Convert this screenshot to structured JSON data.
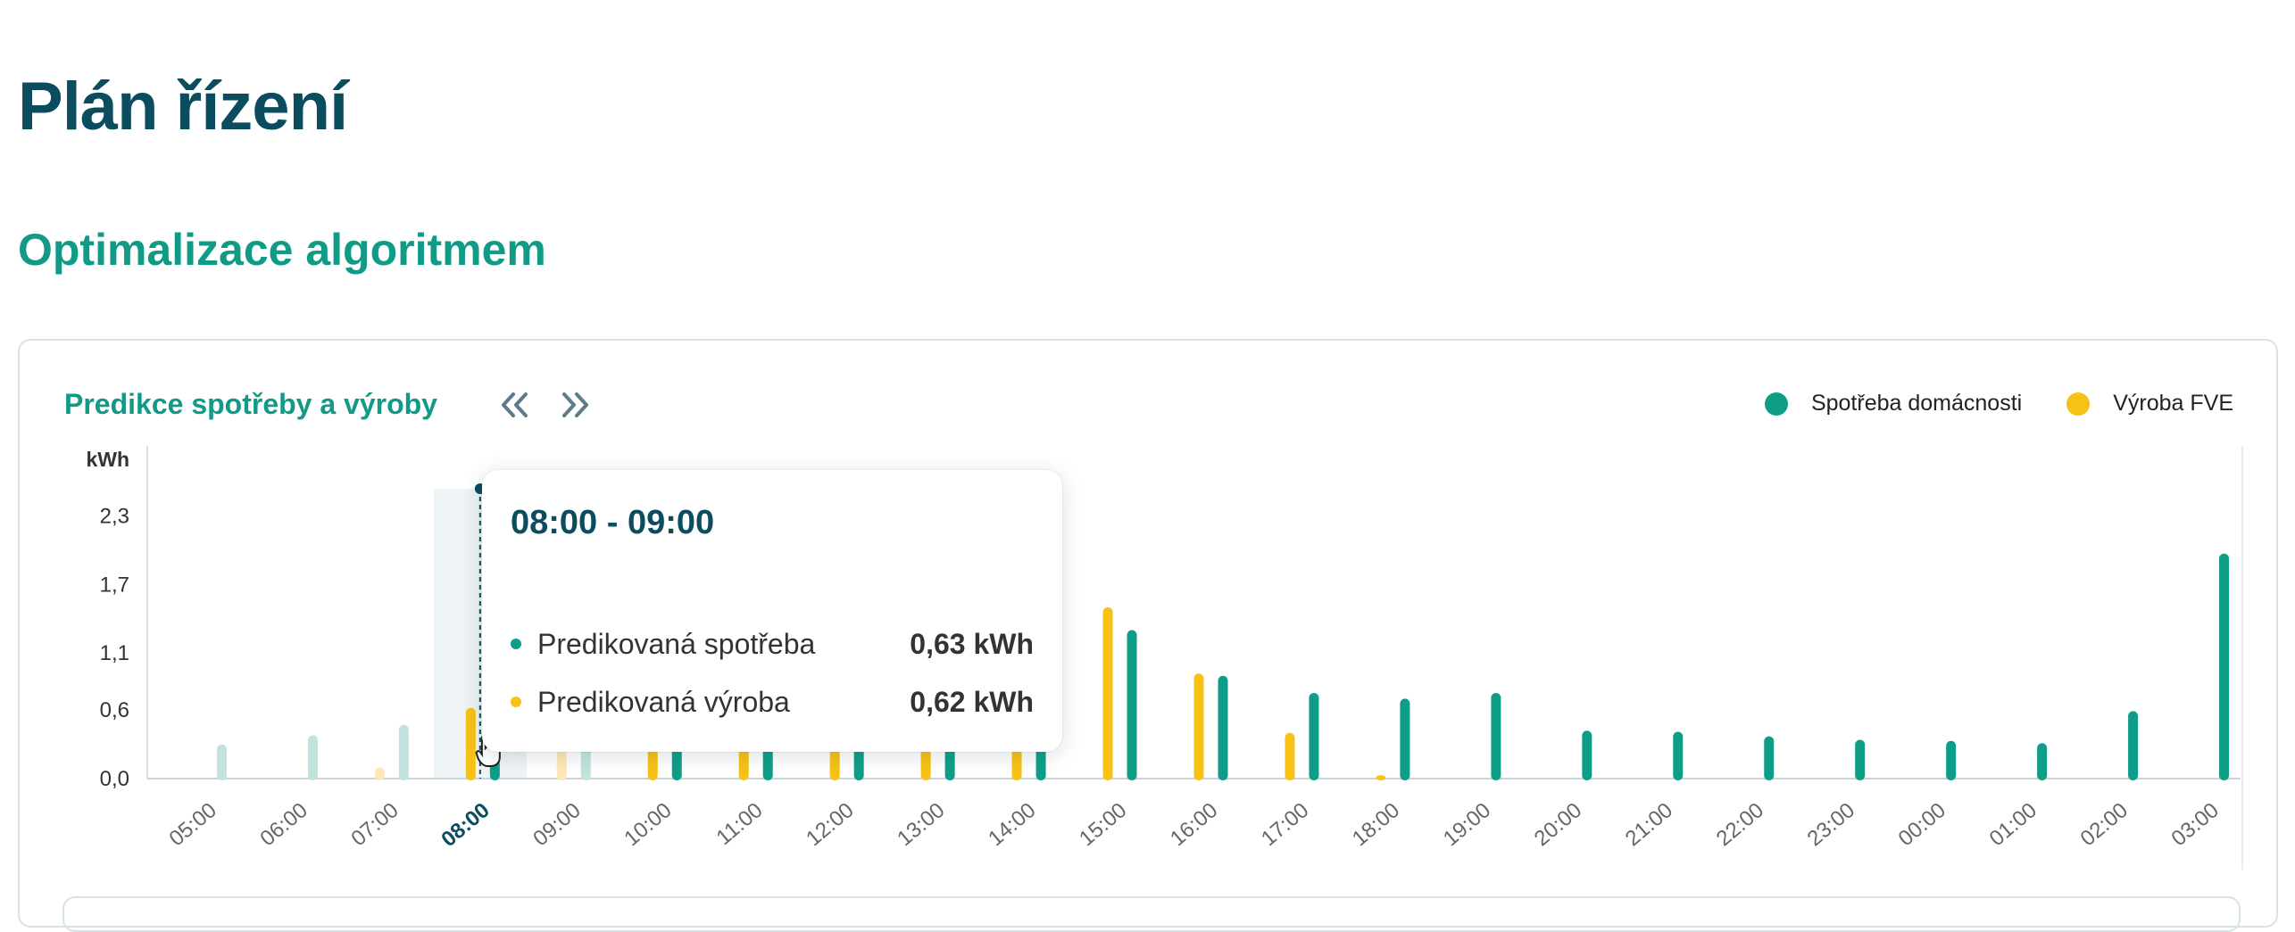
{
  "page": {
    "title": "Plán řízení",
    "section_title": "Optimalizace algoritmem"
  },
  "card": {
    "title": "Predikce spotřeby a výroby",
    "prev_icon": "double-chevron-left-icon",
    "next_icon": "double-chevron-right-icon"
  },
  "legend": {
    "consumption": {
      "label": "Spotřeba domácnosti",
      "color": "#0e9e88"
    },
    "production": {
      "label": "Výroba FVE",
      "color": "#f7c215"
    }
  },
  "tooltip": {
    "title": "08:00 - 09:00",
    "rows": [
      {
        "label": "Predikovaná spotřeba",
        "value": "0,63 kWh",
        "color": "#0e9e88"
      },
      {
        "label": "Predikovaná výroba",
        "value": "0,62 kWh",
        "color": "#f7c215"
      }
    ]
  },
  "chart_data": {
    "type": "bar",
    "ylabel": "kWh",
    "yticks": [
      "0,0",
      "0,6",
      "1,1",
      "1,7",
      "2,3"
    ],
    "ytick_values": [
      0.0,
      0.6,
      1.1,
      1.7,
      2.3
    ],
    "ylim": [
      0,
      2.6
    ],
    "categories": [
      "05:00",
      "06:00",
      "07:00",
      "08:00",
      "09:00",
      "10:00",
      "11:00",
      "12:00",
      "13:00",
      "14:00",
      "15:00",
      "16:00",
      "17:00",
      "18:00",
      "19:00",
      "20:00",
      "21:00",
      "22:00",
      "23:00",
      "00:00",
      "01:00",
      "02:00",
      "03:00"
    ],
    "highlighted_category": "08:00",
    "faded_categories": [
      "05:00",
      "06:00",
      "07:00",
      "09:00"
    ],
    "grid": false,
    "legend_position": "top-right",
    "series": [
      {
        "name": "Spotřeba domácnosti",
        "color": "#0e9e88",
        "values": [
          0.3,
          0.38,
          0.47,
          0.63,
          0.5,
          0.5,
          0.5,
          0.5,
          0.5,
          0.5,
          1.3,
          0.9,
          0.75,
          0.7,
          0.75,
          0.42,
          0.41,
          0.37,
          0.34,
          0.33,
          0.31,
          0.59,
          1.97
        ]
      },
      {
        "name": "Výroba FVE",
        "color": "#f7c215",
        "values": [
          0.0,
          0.0,
          0.1,
          0.62,
          0.3,
          0.5,
          0.5,
          0.5,
          0.5,
          0.5,
          1.5,
          0.92,
          0.4,
          0.03,
          0.0,
          0.0,
          0.0,
          0.0,
          0.0,
          0.0,
          0.0,
          0.0,
          0.0
        ]
      }
    ]
  }
}
